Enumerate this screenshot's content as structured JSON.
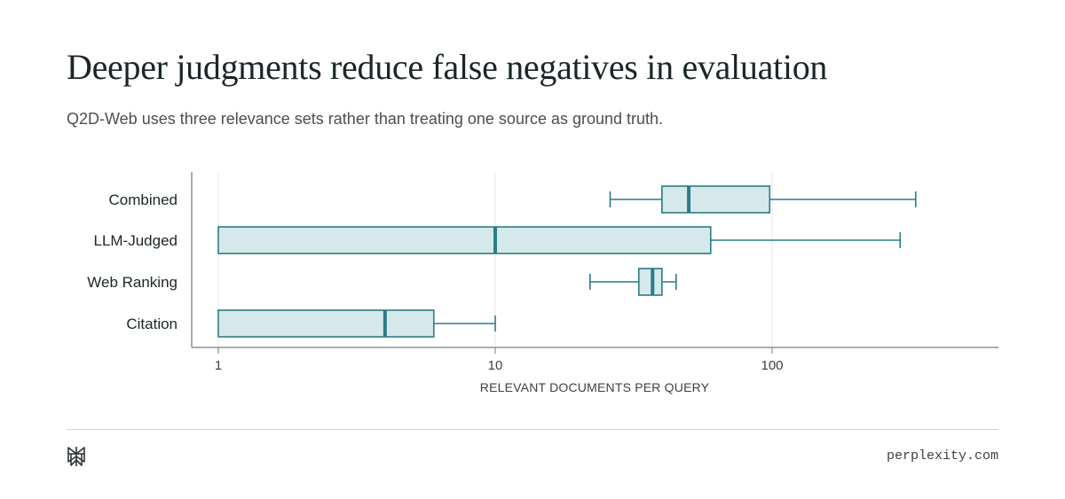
{
  "header": {
    "title": "Deeper judgments reduce false negatives in evaluation",
    "subtitle": "Q2D-Web uses three relevance sets rather than treating one source as ground truth."
  },
  "footer": {
    "url": "perplexity.com",
    "logo_icon": "perplexity-logo-icon"
  },
  "colors": {
    "box_fill": "#d6e9ea",
    "box_stroke": "#2b7c86",
    "axis": "#8e9293",
    "grid": "#e8eaea"
  },
  "chart_data": {
    "type": "boxplot",
    "orientation": "horizontal",
    "xscale": "log",
    "xlim": [
      0.9,
      570
    ],
    "xticks": [
      1,
      10,
      100
    ],
    "xtick_labels": [
      "1",
      "10",
      "100"
    ],
    "xlabel": "RELEVANT DOCUMENTS PER QUERY",
    "grid": "vertical",
    "categories": [
      "Combined",
      "LLM-Judged",
      "Web Ranking",
      "Citation"
    ],
    "boxes": [
      {
        "label": "Combined",
        "whisker_low": 26,
        "q1": 40,
        "median": 50,
        "q3": 98,
        "whisker_high": 330
      },
      {
        "label": "LLM-Judged",
        "whisker_low": 1,
        "q1": 1,
        "median": 10,
        "q3": 60,
        "whisker_high": 290
      },
      {
        "label": "Web Ranking",
        "whisker_low": 22,
        "q1": 33,
        "median": 37,
        "q3": 40,
        "whisker_high": 45
      },
      {
        "label": "Citation",
        "whisker_low": 1,
        "q1": 1,
        "median": 4,
        "q3": 6,
        "whisker_high": 10
      }
    ]
  }
}
